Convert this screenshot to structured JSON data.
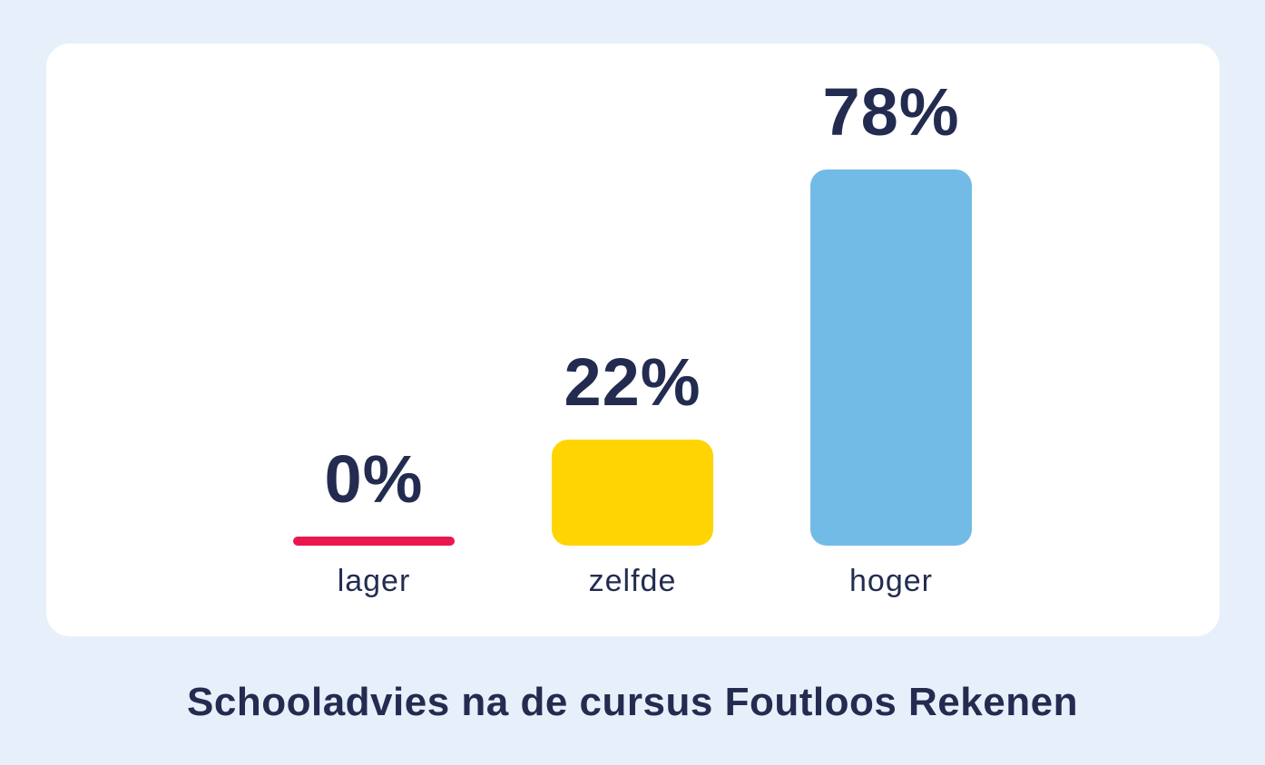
{
  "colors": {
    "page_background": "#E7F0FA",
    "card_background": "#FFFFFF",
    "text": "#232C50",
    "bar_lager": "#EA174F",
    "bar_zelfde": "#FFD400",
    "bar_hoger": "#73BBE7"
  },
  "chart_data": {
    "type": "bar",
    "title": "Schooladvies na de cursus Foutloos Rekenen",
    "categories": [
      "lager",
      "zelfde",
      "hoger"
    ],
    "values": [
      0,
      22,
      78
    ],
    "value_labels": [
      "0%",
      "22%",
      "78%"
    ],
    "bar_colors": [
      "#EA174F",
      "#FFD400",
      "#73BBE7"
    ],
    "xlabel": "",
    "ylabel": "",
    "ylim": [
      0,
      100
    ],
    "grid": false,
    "legend": "none",
    "value_label_position": "above-bar",
    "orientation": "vertical"
  }
}
